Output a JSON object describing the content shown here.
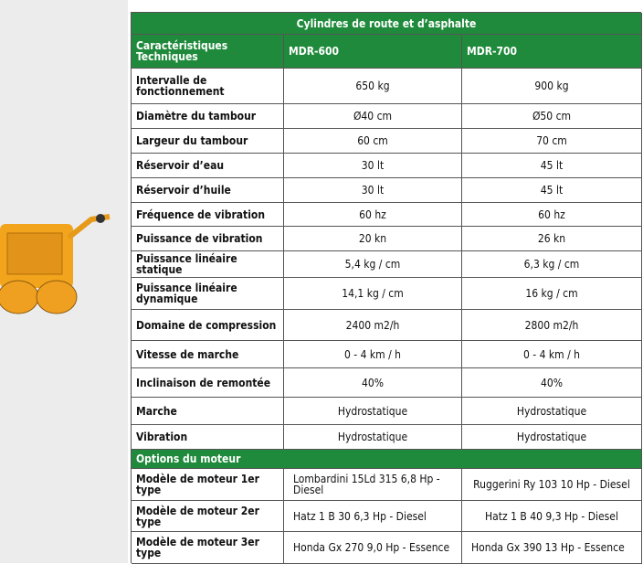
{
  "table": {
    "title": "Cylindres de route et d’asphalte",
    "columns": [
      "Caractéristiques Techniques",
      "MDR-600",
      "MDR-700"
    ],
    "rows": [
      [
        "Intervalle de fonctionnement",
        "650 kg",
        "900 kg"
      ],
      [
        "Diamètre du tambour",
        "Ø40 cm",
        "Ø50 cm"
      ],
      [
        "Largeur du tambour",
        "60 cm",
        "70 cm"
      ],
      [
        "Réservoir d’eau",
        "30 lt",
        "45 lt"
      ],
      [
        "Réservoir d’huile",
        "30 lt",
        "45 lt"
      ],
      [
        "Fréquence de vibration",
        "60 hz",
        "60 hz"
      ],
      [
        "Puissance de vibration",
        "20 kn",
        "26 kn"
      ],
      [
        "Puissance linéaire statique",
        "5,4 kg / cm",
        "6,3 kg / cm"
      ],
      [
        "Puissance linéaire dynamique",
        "14,1 kg / cm",
        "16 kg / cm"
      ],
      [
        "Domaine de compression",
        "2400 m2/h",
        "2800 m2/h"
      ],
      [
        "Vitesse de marche",
        "0 - 4 km / h",
        "0 - 4 km / h"
      ],
      [
        "Inclinaison de remontée",
        "40%",
        "40%"
      ],
      [
        "Marche",
        "Hydrostatique",
        "Hydrostatique"
      ],
      [
        "Vibration",
        "Hydrostatique",
        "Hydrostatique"
      ]
    ],
    "section": "Options du moteur",
    "engine_rows": [
      [
        "Modèle de moteur 1er type",
        "Lombardini 15Ld 315 6,8 Hp - Diesel",
        "Ruggerini Ry 103 10 Hp - Diesel"
      ],
      [
        "Modèle de moteur 2er type",
        "Hatz 1 B 30 6,3 Hp - Diesel",
        "Hatz 1 B 40 9,3 Hp - Diesel"
      ],
      [
        "Modèle de moteur 3er type",
        "Honda Gx 270 9,0 Hp - Essence",
        "Honda Gx 390 13 Hp - Essence"
      ]
    ]
  }
}
